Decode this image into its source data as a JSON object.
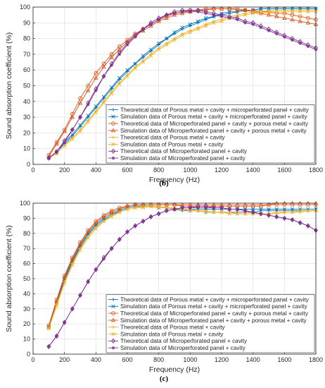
{
  "chart_data": [
    {
      "type": "line",
      "panel_label": "(b)",
      "xlabel": "Frequency (Hz)",
      "ylabel": "Sound absorption coefficient (%)",
      "xlim": [
        0,
        1800
      ],
      "ylim": [
        0,
        100
      ],
      "xticks": [
        0,
        200,
        400,
        600,
        800,
        1000,
        1200,
        1400,
        1600,
        1800
      ],
      "yticks": [
        0,
        10,
        20,
        30,
        40,
        50,
        60,
        70,
        80,
        90,
        100
      ],
      "grid": true,
      "legend_position": "lower-right",
      "x": [
        100,
        150,
        200,
        250,
        300,
        350,
        400,
        450,
        500,
        550,
        600,
        650,
        700,
        750,
        800,
        850,
        900,
        950,
        1000,
        1050,
        1100,
        1150,
        1200,
        1250,
        1300,
        1350,
        1400,
        1450,
        1500,
        1550,
        1600,
        1650,
        1700,
        1750,
        1800
      ],
      "series": [
        {
          "name": "Theoretical data of Porous metal + cavity + microperforated panel + cavity",
          "color": "#0072BD",
          "marker": "plus",
          "values": [
            4,
            8,
            13,
            18,
            24,
            30,
            36,
            42,
            48,
            54,
            59,
            64,
            68,
            72,
            76,
            80,
            83,
            86,
            88,
            90,
            92,
            94,
            95,
            96,
            97,
            98,
            98,
            99,
            99,
            99,
            99,
            99,
            99,
            99,
            99
          ]
        },
        {
          "name": "Simulation data of Porous metal + cavity + microperforated panel + cavity",
          "color": "#0072BD",
          "marker": "x",
          "values": [
            4,
            8,
            14,
            19,
            25,
            31,
            37,
            43,
            49,
            55,
            60,
            64,
            69,
            73,
            77,
            80,
            84,
            87,
            89,
            91,
            93,
            94,
            96,
            97,
            97,
            98,
            98,
            99,
            99,
            99,
            99,
            99,
            99,
            99,
            99
          ]
        },
        {
          "name": "Theoretical data of Microperforated panel + cavity + porous metal + cavity",
          "color": "#D95319",
          "marker": "circle",
          "values": [
            6,
            14,
            22,
            32,
            42,
            50,
            58,
            64,
            70,
            75,
            79,
            83,
            86,
            89,
            92,
            94,
            96,
            97,
            98,
            98,
            99,
            99,
            99,
            99,
            99,
            98,
            98,
            97,
            97,
            96,
            96,
            95,
            94,
            93,
            92
          ]
        },
        {
          "name": "Simulation data of Microperforated panel + cavity + porous metal + cavity",
          "color": "#D95319",
          "marker": "triangle",
          "values": [
            5,
            13,
            21,
            30,
            39,
            47,
            55,
            62,
            68,
            73,
            78,
            82,
            85,
            88,
            91,
            93,
            95,
            96,
            97,
            98,
            98,
            99,
            99,
            99,
            98,
            98,
            97,
            96,
            95,
            94,
            93,
            92,
            91,
            90,
            89
          ]
        },
        {
          "name": "Theoretical data of Porous metal + cavity",
          "color": "#EDB120",
          "marker": "plus",
          "values": [
            4,
            7,
            12,
            17,
            22,
            28,
            34,
            40,
            46,
            52,
            57,
            62,
            66,
            70,
            74,
            77,
            80,
            83,
            85,
            87,
            89,
            91,
            92,
            94,
            95,
            96,
            97,
            97,
            98,
            98,
            98,
            98,
            98,
            98,
            98
          ]
        },
        {
          "name": "Simulation data of Porous metal + cavity",
          "color": "#EDB120",
          "marker": "x",
          "values": [
            4,
            7,
            12,
            16,
            21,
            27,
            33,
            39,
            45,
            51,
            56,
            61,
            65,
            69,
            73,
            76,
            79,
            82,
            84,
            86,
            88,
            90,
            91,
            93,
            94,
            95,
            96,
            96,
            97,
            97,
            97,
            97,
            97,
            97,
            97
          ]
        },
        {
          "name": "Theoretical data of Microperforated panel + cavity",
          "color": "#7E2F8E",
          "marker": "diamond",
          "values": [
            4,
            8,
            15,
            22,
            30,
            39,
            48,
            56,
            64,
            71,
            77,
            82,
            86,
            90,
            93,
            95,
            97,
            98,
            98,
            98,
            97,
            96,
            95,
            94,
            93,
            91,
            90,
            88,
            86,
            84,
            82,
            80,
            78,
            76,
            74
          ]
        },
        {
          "name": "Simulation data of Microperforated panel + cavity",
          "color": "#7E2F8E",
          "marker": "star",
          "values": [
            4,
            8,
            14,
            22,
            30,
            38,
            47,
            56,
            63,
            70,
            76,
            81,
            86,
            89,
            92,
            95,
            96,
            97,
            97,
            97,
            96,
            95,
            94,
            93,
            92,
            90,
            89,
            87,
            85,
            83,
            81,
            79,
            77,
            75,
            73
          ]
        }
      ]
    },
    {
      "type": "line",
      "panel_label": "(c)",
      "xlabel": "Frequency (Hz)",
      "ylabel": "Sound absorption coefficient (%)",
      "xlim": [
        0,
        1800
      ],
      "ylim": [
        0,
        100
      ],
      "xticks": [
        0,
        200,
        400,
        600,
        800,
        1000,
        1200,
        1400,
        1600,
        1800
      ],
      "yticks": [
        0,
        10,
        20,
        30,
        40,
        50,
        60,
        70,
        80,
        90,
        100
      ],
      "grid": true,
      "legend_position": "lower-right",
      "x": [
        100,
        150,
        200,
        250,
        300,
        350,
        400,
        450,
        500,
        550,
        600,
        650,
        700,
        750,
        800,
        850,
        900,
        950,
        1000,
        1050,
        1100,
        1150,
        1200,
        1250,
        1300,
        1350,
        1400,
        1450,
        1500,
        1550,
        1600,
        1650,
        1700,
        1750,
        1800
      ],
      "series": [
        {
          "name": "Theoretical data of Porous metal + cavity + microperforated panel + cavity",
          "color": "#0072BD",
          "marker": "plus",
          "values": [
            18,
            34,
            49,
            61,
            71,
            79,
            85,
            89,
            92,
            95,
            97,
            98,
            98,
            98,
            97,
            97,
            96,
            95,
            95,
            95,
            94,
            94,
            94,
            94,
            94,
            94,
            94,
            95,
            95,
            95,
            95,
            95,
            95,
            95,
            95
          ]
        },
        {
          "name": "Simulation data of Porous metal + cavity + microperforated panel + cavity",
          "color": "#0072BD",
          "marker": "x",
          "values": [
            18,
            34,
            50,
            62,
            72,
            80,
            86,
            90,
            93,
            95,
            97,
            98,
            98,
            98,
            97,
            97,
            96,
            96,
            96,
            96,
            96,
            96,
            96,
            96,
            96,
            96,
            96,
            96,
            96,
            96,
            96,
            96,
            96,
            96,
            96
          ]
        },
        {
          "name": "Theoretical data of Microperforated panel + cavity + porous metal + cavity",
          "color": "#D95319",
          "marker": "circle",
          "values": [
            19,
            36,
            52,
            64,
            74,
            82,
            88,
            92,
            95,
            97,
            98,
            99,
            99,
            99,
            99,
            99,
            99,
            98,
            98,
            98,
            98,
            98,
            98,
            98,
            98,
            98,
            98,
            98,
            99,
            99,
            99,
            99,
            99,
            99,
            99
          ]
        },
        {
          "name": "Simulation data of Microperforated panel + cavity + porous metal + cavity",
          "color": "#D95319",
          "marker": "triangle",
          "values": [
            18,
            35,
            51,
            63,
            73,
            81,
            87,
            91,
            94,
            96,
            98,
            99,
            99,
            99,
            99,
            99,
            99,
            99,
            99,
            99,
            99,
            99,
            99,
            99,
            99,
            99,
            99,
            99,
            99,
            100,
            100,
            100,
            100,
            100,
            100
          ]
        },
        {
          "name": "Theoretical data of Porous metal + cavity",
          "color": "#EDB120",
          "marker": "plus",
          "values": [
            17,
            33,
            48,
            60,
            70,
            78,
            84,
            88,
            92,
            94,
            96,
            97,
            98,
            98,
            98,
            97,
            97,
            96,
            96,
            95,
            95,
            94,
            94,
            94,
            93,
            93,
            93,
            93,
            93,
            93,
            94,
            94,
            94,
            95,
            95
          ]
        },
        {
          "name": "Simulation data of Porous metal + cavity",
          "color": "#EDB120",
          "marker": "x",
          "values": [
            17,
            32,
            47,
            59,
            69,
            77,
            83,
            88,
            91,
            94,
            96,
            97,
            97,
            98,
            97,
            97,
            96,
            96,
            95,
            95,
            94,
            94,
            94,
            93,
            93,
            93,
            93,
            93,
            93,
            94,
            94,
            94,
            95,
            95,
            95
          ]
        },
        {
          "name": "Theoretical data of Microperforated panel + cavity",
          "color": "#7E2F8E",
          "marker": "diamond",
          "values": [
            5,
            12,
            21,
            30,
            39,
            48,
            56,
            64,
            70,
            76,
            81,
            85,
            88,
            91,
            93,
            95,
            96,
            97,
            97,
            98,
            98,
            97,
            97,
            96,
            96,
            95,
            94,
            93,
            92,
            91,
            90,
            89,
            87,
            85,
            82
          ]
        },
        {
          "name": "Simulation data of Microperforated panel + cavity",
          "color": "#7E2F8E",
          "marker": "star",
          "values": [
            5,
            12,
            21,
            30,
            39,
            48,
            56,
            63,
            70,
            76,
            81,
            85,
            88,
            91,
            93,
            95,
            96,
            97,
            97,
            97,
            97,
            97,
            97,
            96,
            96,
            95,
            94,
            93,
            92,
            91,
            90,
            89,
            87,
            85,
            82
          ]
        }
      ]
    }
  ]
}
